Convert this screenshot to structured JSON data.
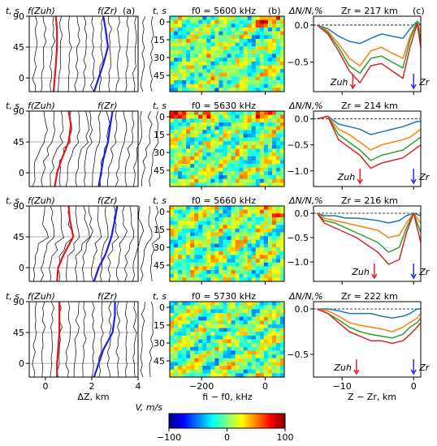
{
  "chart_data": [
    {
      "panel": "a",
      "type": "line",
      "label": "(a)",
      "xlabel": "ΔZ, km",
      "ylabel": "t, s",
      "xlim": [
        -0.7,
        4
      ],
      "xticks": [
        "0",
        "2",
        "4"
      ],
      "ylim": [
        90,
        -20
      ],
      "yticks": [
        "0",
        "45",
        "90"
      ],
      "legend": {
        "uh": "f(Zuh)",
        "r": "f(Zr)"
      },
      "rows": [
        {
          "red_x": [
            0.35,
            0.4,
            0.45,
            0.5,
            0.5,
            0.45
          ],
          "blue_x": [
            2.1,
            2.3,
            2.5,
            2.7,
            2.6,
            2.5
          ],
          "red_y": [
            -20,
            0,
            20,
            45,
            70,
            90
          ]
        },
        {
          "red_x": [
            0.4,
            0.5,
            0.7,
            1.0,
            1.1,
            1.0
          ],
          "blue_x": [
            2.3,
            2.4,
            2.5,
            2.7,
            2.8,
            2.9
          ],
          "red_y": [
            -20,
            0,
            20,
            45,
            70,
            90
          ]
        },
        {
          "red_x": [
            0.5,
            0.55,
            0.8,
            1.2,
            1.05,
            1.0
          ],
          "blue_x": [
            2.1,
            2.3,
            2.6,
            2.85,
            3.0,
            3.1
          ],
          "red_y": [
            -20,
            0,
            20,
            45,
            70,
            90
          ]
        },
        {
          "red_x": [
            0.5,
            0.5,
            0.55,
            0.6,
            0.6,
            0.6
          ],
          "blue_x": [
            2.1,
            2.3,
            2.5,
            2.9,
            3.0,
            3.0
          ],
          "red_y": [
            -20,
            0,
            20,
            45,
            70,
            90
          ]
        }
      ]
    },
    {
      "panel": "b",
      "type": "heatmap",
      "label": "(b)",
      "xlabel": "fi − f0, kHz",
      "ylabel": "t, s",
      "xticks": [
        "−200",
        "0"
      ],
      "xlim": [
        -300,
        60
      ],
      "rows": [
        {
          "f0_label": "f0 = 5600 kHz",
          "yticks": [
            "0",
            "15",
            "30",
            "45"
          ]
        },
        {
          "f0_label": "f0 = 5630 kHz",
          "yticks": [
            "0",
            "15",
            "30",
            "45"
          ]
        },
        {
          "f0_label": "f0 = 5660 kHz",
          "yticks": [
            "0",
            "15",
            "30",
            "45"
          ]
        },
        {
          "f0_label": "f0 = 5730 kHz",
          "yticks": [
            "0",
            "15",
            "30",
            "45"
          ]
        }
      ],
      "colorbar": {
        "label": "V, m/s",
        "min": -100,
        "max": 100,
        "ticks": [
          "−100",
          "0",
          "100"
        ]
      }
    },
    {
      "panel": "c",
      "type": "line",
      "label": "(c)",
      "xlabel": "Z − Zr, km",
      "ylabel": "ΔN/N,%",
      "xticks": [
        "−10",
        "0"
      ],
      "xlim": [
        -14,
        1
      ],
      "series_colors": [
        "#1f77b4",
        "#ff7f0e",
        "#2ca02c",
        "#d62728"
      ],
      "rows": [
        {
          "zr_label": "Zr = 217 km",
          "yticks": [
            "0.0",
            "−0.5"
          ],
          "ylim": [
            -0.9,
            0.12
          ],
          "uh_x": -8.5,
          "uh_label": "Zuh",
          "r_label": "Zr",
          "x": [
            -13.5,
            -12,
            -10.5,
            -9,
            -7.5,
            -6,
            -4.5,
            -3,
            -1.5,
            -0.5,
            0.5,
            1
          ],
          "series": [
            {
              "values": [
                0.0,
                -0.05,
                -0.15,
                -0.22,
                -0.25,
                -0.18,
                -0.12,
                -0.15,
                -0.18,
                -0.05,
                0.05,
                0.0
              ]
            },
            {
              "values": [
                0.0,
                -0.08,
                -0.25,
                -0.45,
                -0.55,
                -0.35,
                -0.3,
                -0.38,
                -0.45,
                -0.15,
                0.05,
                -0.1
              ]
            },
            {
              "values": [
                0.0,
                -0.1,
                -0.3,
                -0.55,
                -0.65,
                -0.45,
                -0.42,
                -0.5,
                -0.58,
                -0.2,
                0.05,
                -0.2
              ]
            },
            {
              "values": [
                0.0,
                -0.12,
                -0.35,
                -0.62,
                -0.78,
                -0.55,
                -0.52,
                -0.62,
                -0.72,
                -0.3,
                0.02,
                -0.3
              ]
            }
          ]
        },
        {
          "zr_label": "Zr = 214 km",
          "yticks": [
            "0.0",
            "−0.5",
            "−1.0"
          ],
          "ylim": [
            -1.3,
            0.15
          ],
          "uh_x": -7.5,
          "uh_label": "Zuh",
          "r_label": "Zr",
          "x": [
            -13.5,
            -12,
            -10.5,
            -9,
            -7.5,
            -6,
            -4.5,
            -3,
            -1.5,
            -0.5,
            0.5,
            1
          ],
          "series": [
            {
              "values": [
                0.0,
                0.05,
                -0.1,
                -0.15,
                -0.2,
                -0.3,
                -0.25,
                -0.2,
                -0.15,
                -0.1,
                -0.05,
                -0.05
              ]
            },
            {
              "values": [
                0.0,
                0.05,
                -0.2,
                -0.3,
                -0.45,
                -0.6,
                -0.5,
                -0.45,
                -0.4,
                -0.35,
                -0.25,
                -0.2
              ]
            },
            {
              "values": [
                0.0,
                0.05,
                -0.3,
                -0.45,
                -0.6,
                -0.8,
                -0.7,
                -0.65,
                -0.6,
                -0.5,
                -0.4,
                -0.35
              ]
            },
            {
              "values": [
                0.0,
                0.05,
                -0.4,
                -0.55,
                -0.7,
                -0.95,
                -0.85,
                -0.8,
                -0.75,
                -0.65,
                -0.55,
                -0.5
              ]
            }
          ]
        },
        {
          "zr_label": "Zr = 216 km",
          "yticks": [
            "0.0",
            "−0.5",
            "−1.0"
          ],
          "ylim": [
            -1.4,
            0.15
          ],
          "uh_x": -5.5,
          "uh_label": "Zuh",
          "r_label": "Zr",
          "x": [
            -13.5,
            -12.5,
            -11,
            -9.5,
            -8,
            -6.5,
            -5,
            -3.5,
            -2,
            -1,
            0,
            1
          ],
          "series": [
            {
              "values": [
                0.0,
                -0.05,
                -0.05,
                -0.1,
                -0.1,
                -0.12,
                -0.15,
                -0.2,
                -0.15,
                -0.05,
                0.0,
                -0.05
              ]
            },
            {
              "values": [
                0.0,
                -0.1,
                -0.15,
                -0.2,
                -0.25,
                -0.3,
                -0.35,
                -0.5,
                -0.45,
                -0.2,
                0.0,
                -0.2
              ]
            },
            {
              "values": [
                0.0,
                -0.15,
                -0.2,
                -0.3,
                -0.4,
                -0.5,
                -0.6,
                -0.8,
                -0.7,
                -0.3,
                0.0,
                -0.4
              ]
            },
            {
              "values": [
                0.0,
                -0.2,
                -0.3,
                -0.4,
                -0.5,
                -0.65,
                -0.8,
                -1.05,
                -0.95,
                -0.4,
                0.0,
                -0.6
              ]
            }
          ]
        },
        {
          "zr_label": "Zr = 222 km",
          "yticks": [
            "0.0",
            "−0.5"
          ],
          "ylim": [
            -0.75,
            0.08
          ],
          "uh_x": -8.0,
          "uh_label": "Zuh",
          "r_label": "Zr",
          "x": [
            -13.5,
            -12,
            -10.5,
            -9,
            -7.5,
            -6,
            -4.5,
            -3,
            -1.5,
            -0.5,
            0.5,
            1
          ],
          "series": [
            {
              "values": [
                0.0,
                0.0,
                -0.02,
                -0.05,
                -0.05,
                -0.05,
                -0.08,
                -0.1,
                -0.08,
                -0.05,
                0.0,
                0.0
              ]
            },
            {
              "values": [
                0.0,
                -0.02,
                -0.08,
                -0.15,
                -0.18,
                -0.2,
                -0.22,
                -0.25,
                -0.2,
                -0.15,
                -0.1,
                -0.05
              ]
            },
            {
              "values": [
                0.0,
                -0.05,
                -0.12,
                -0.2,
                -0.25,
                -0.28,
                -0.3,
                -0.32,
                -0.28,
                -0.2,
                -0.15,
                -0.1
              ]
            },
            {
              "values": [
                0.0,
                -0.05,
                -0.15,
                -0.25,
                -0.3,
                -0.35,
                -0.35,
                -0.38,
                -0.35,
                -0.28,
                -0.2,
                -0.15
              ]
            }
          ]
        }
      ]
    }
  ]
}
